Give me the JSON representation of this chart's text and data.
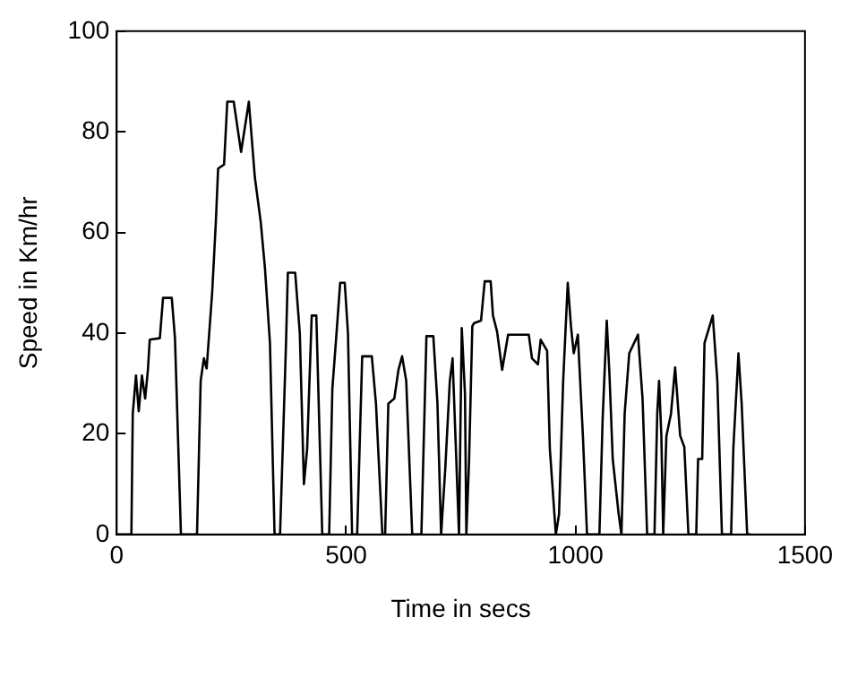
{
  "chart_data": {
    "type": "line",
    "xlabel": "Time in secs",
    "ylabel": "Speed in Km/hr",
    "xlim": [
      0,
      1500
    ],
    "xticks": [
      0,
      500,
      1000,
      1500
    ],
    "ylim": [
      0,
      100
    ],
    "yticks": [
      0,
      20,
      40,
      60,
      80,
      100
    ],
    "grid": false,
    "legend": false,
    "marker": "none",
    "line_style": "solid",
    "x": [
      0,
      32,
      35,
      42,
      48,
      55,
      62,
      68,
      72,
      94,
      101,
      120,
      127,
      140,
      175,
      183,
      190,
      196,
      208,
      216,
      221,
      234,
      241,
      255,
      271,
      288,
      301,
      314,
      323,
      334,
      344,
      356,
      369,
      373,
      389,
      399,
      408,
      415,
      425,
      435,
      448,
      463,
      470,
      478,
      487,
      497,
      504,
      513,
      524,
      535,
      556,
      565,
      579,
      585,
      592,
      605,
      614,
      622,
      631,
      644,
      664,
      675,
      690,
      699,
      707,
      716,
      726,
      732,
      740,
      746,
      752,
      759,
      762,
      768,
      775,
      779,
      794,
      802,
      815,
      820,
      829,
      840,
      853,
      898,
      905,
      918,
      924,
      938,
      944,
      957,
      964,
      973,
      983,
      990,
      996,
      1005,
      1016,
      1025,
      1052,
      1059,
      1068,
      1074,
      1081,
      1094,
      1100,
      1107,
      1117,
      1136,
      1146,
      1156,
      1172,
      1178,
      1182,
      1187,
      1191,
      1198,
      1208,
      1217,
      1228,
      1237,
      1246,
      1263,
      1267,
      1276,
      1281,
      1299,
      1309,
      1319,
      1339,
      1344,
      1355,
      1362,
      1374,
      1380
    ],
    "series": [
      {
        "color": "#000000",
        "values": [
          0,
          0,
          24,
          31.6,
          24.5,
          31.6,
          27,
          32.7,
          38.7,
          39,
          47,
          47,
          39,
          0,
          0,
          30.5,
          35,
          33,
          48,
          62,
          72.7,
          73.5,
          86,
          86,
          76,
          86,
          71,
          62,
          53,
          38,
          0,
          0,
          38,
          52,
          52,
          40,
          10,
          17,
          43.5,
          43.5,
          0,
          0,
          29,
          38.7,
          50,
          50,
          40,
          0,
          0,
          35.4,
          35.4,
          26,
          0,
          0,
          26,
          27,
          32.7,
          35.4,
          30.5,
          0,
          0,
          39.4,
          39.4,
          26,
          0,
          13,
          30.5,
          35,
          15,
          0,
          41,
          28,
          0,
          15,
          41.4,
          42,
          42.5,
          50.3,
          50.3,
          43.5,
          40.3,
          32.7,
          39.7,
          39.7,
          35,
          33.8,
          38.7,
          36.5,
          17,
          0,
          4,
          30.5,
          50,
          41.4,
          36,
          39.7,
          19.6,
          0,
          0,
          22.9,
          42.5,
          31.6,
          15,
          4,
          0,
          24,
          36,
          39.7,
          27,
          0,
          0,
          24,
          30.5,
          19.6,
          0,
          19.6,
          24,
          33.2,
          19.6,
          17.4,
          0,
          0,
          15,
          15,
          38,
          43.5,
          30.5,
          0,
          0,
          17.4,
          36,
          26,
          0,
          0
        ]
      }
    ]
  }
}
